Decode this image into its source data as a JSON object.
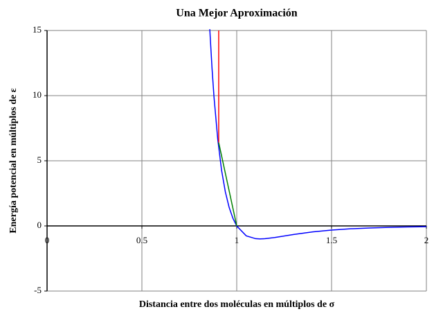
{
  "chart_data": {
    "type": "line",
    "title": "Una Mejor Aproximación",
    "xlabel": "Distancia entre dos moléculas en múltiplos de σ",
    "ylabel": "Energía potencial en múltiplos de ε",
    "xlim": [
      0,
      2
    ],
    "ylim": [
      -5,
      15
    ],
    "xticks": [
      0,
      0.5,
      1,
      1.5,
      2
    ],
    "yticks": [
      -5,
      0,
      5,
      10,
      15
    ],
    "grid": true,
    "series": [
      {
        "color": "#0000ff",
        "x": [
          0.858,
          0.86,
          0.87,
          0.88,
          0.9,
          0.92,
          0.94,
          0.96,
          0.98,
          1.0,
          1.05,
          1.1,
          1.122,
          1.15,
          1.2,
          1.3,
          1.4,
          1.5,
          1.6,
          1.7,
          1.8,
          1.9,
          2.0
        ],
        "values": [
          15.1,
          14.56,
          12.05,
          9.93,
          6.64,
          4.28,
          2.61,
          1.42,
          0.58,
          0,
          -0.76,
          -0.98,
          -1.0,
          -0.98,
          -0.89,
          -0.66,
          -0.46,
          -0.32,
          -0.22,
          -0.16,
          -0.11,
          -0.08,
          -0.06
        ]
      },
      {
        "color": "#ff0000",
        "x": [
          0.905,
          0.905
        ],
        "values": [
          15,
          6.4
        ]
      },
      {
        "color": "#008000",
        "x": [
          0.905,
          1.0
        ],
        "values": [
          6.4,
          0
        ]
      }
    ]
  }
}
